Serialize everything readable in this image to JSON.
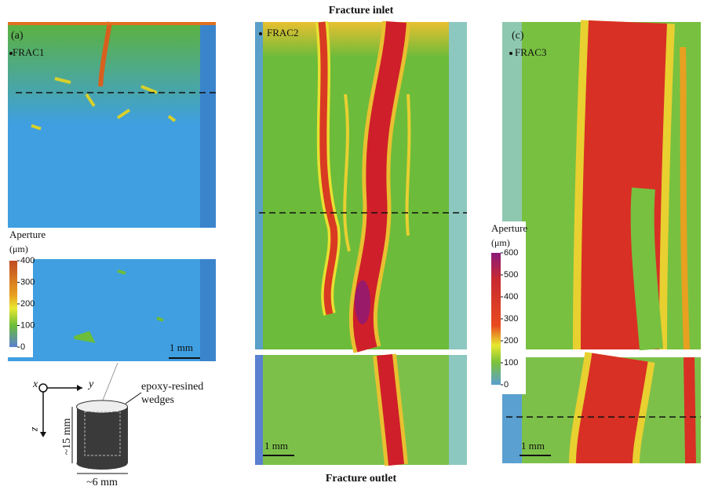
{
  "header": {
    "top": "Fracture inlet",
    "bottom": "Fracture outlet"
  },
  "panels": [
    {
      "label": "(a)",
      "sample": "FRAC1",
      "scale_bar": "1 mm",
      "colorbar": {
        "title": "Aperture",
        "unit": "(μm)",
        "ticks": [
          0,
          100,
          200,
          300,
          400
        ]
      }
    },
    {
      "sample": "FRAC2",
      "scale_bar": "1 mm"
    },
    {
      "label": "(c)",
      "sample": "FRAC3",
      "scale_bar": "1 mm",
      "colorbar": {
        "title": "Aperture",
        "unit": "(μm)",
        "ticks": [
          0,
          100,
          200,
          300,
          400,
          500,
          600
        ]
      }
    }
  ],
  "schematic": {
    "axis_x": "x",
    "axis_y": "y",
    "axis_z": "z",
    "annotation": [
      "epoxy-resined",
      "wedges"
    ],
    "length": "~15 mm",
    "diameter": "~6 mm"
  }
}
